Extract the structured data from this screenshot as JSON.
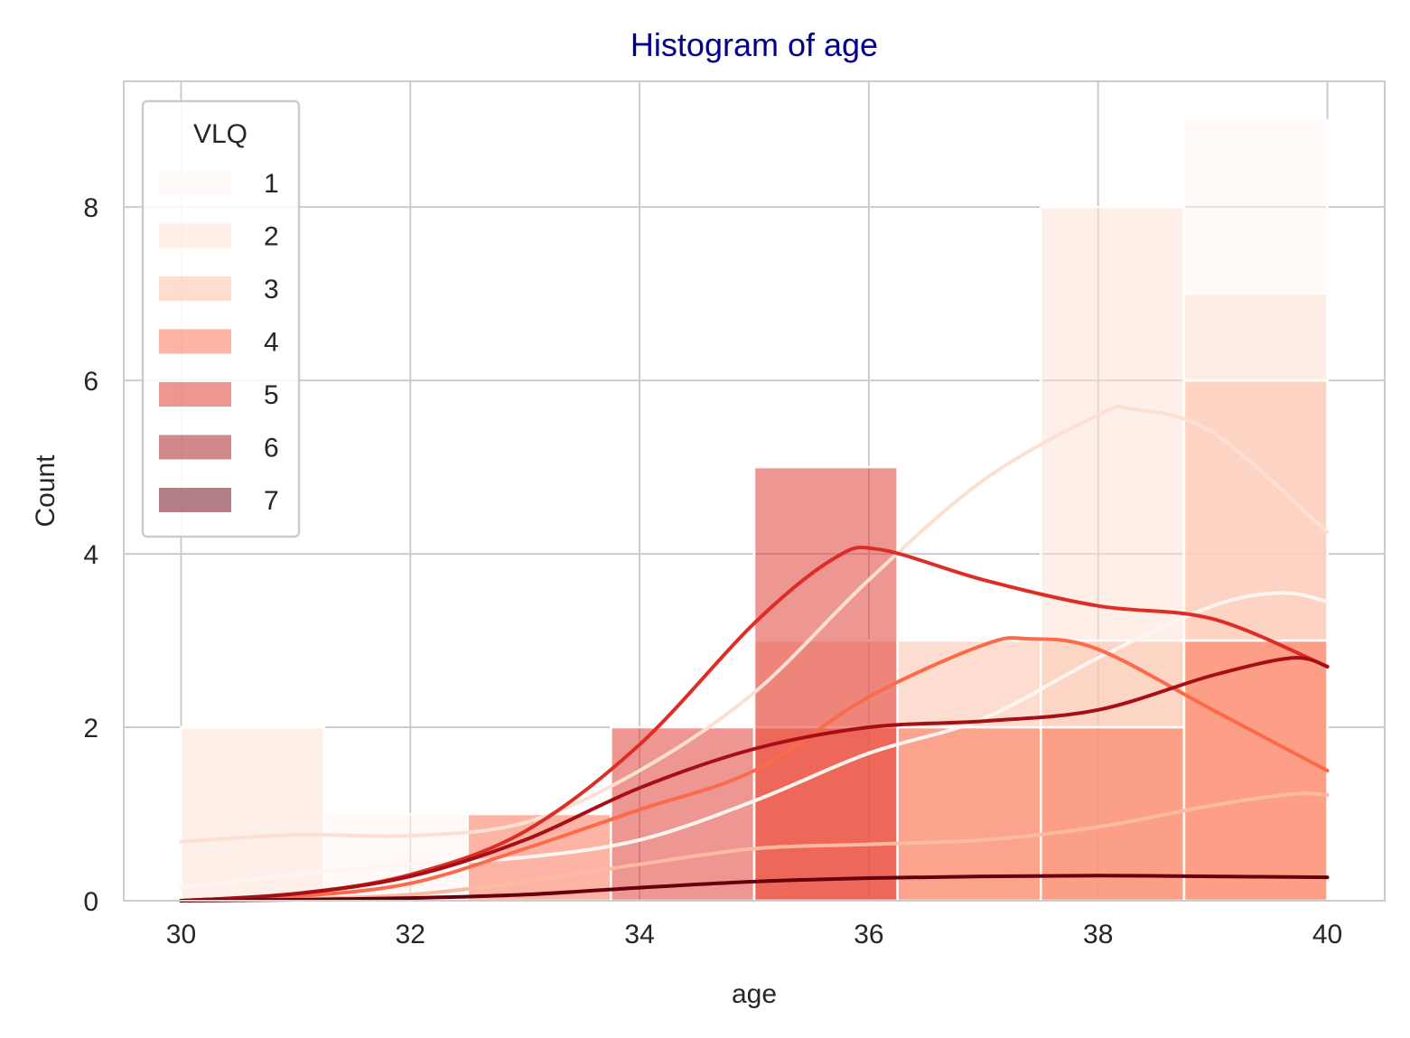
{
  "chart_data": {
    "type": "bar",
    "title": "Histogram of age",
    "title_color": "#00008b",
    "xlabel": "age",
    "ylabel": "Count",
    "xlim": [
      29.5,
      40.5
    ],
    "ylim": [
      0,
      9.45
    ],
    "xticks": [
      30,
      32,
      34,
      36,
      38,
      40
    ],
    "yticks": [
      0,
      2,
      4,
      6,
      8
    ],
    "grid": true,
    "legend": {
      "title": "VLQ",
      "position": "top-left"
    },
    "bin_edges": [
      30,
      31.25,
      32.5,
      33.75,
      35,
      36.25,
      37.5,
      38.75,
      40
    ],
    "series": [
      {
        "name": "1",
        "color": "#fff5f0",
        "counts": [
          0,
          1,
          0,
          0,
          0,
          0,
          0,
          9
        ],
        "kde": [
          [
            30,
            0.15
          ],
          [
            31,
            0.3
          ],
          [
            32,
            0.42
          ],
          [
            33,
            0.5
          ],
          [
            34,
            0.7
          ],
          [
            35,
            1.15
          ],
          [
            36,
            1.7
          ],
          [
            37,
            2.1
          ],
          [
            38,
            2.8
          ],
          [
            39,
            3.4
          ],
          [
            39.6,
            3.55
          ],
          [
            40,
            3.45
          ]
        ]
      },
      {
        "name": "2",
        "color": "#fde0d2",
        "counts": [
          2,
          0,
          0,
          0,
          0,
          0,
          8,
          7
        ],
        "kde": [
          [
            30,
            0.68
          ],
          [
            31,
            0.76
          ],
          [
            32,
            0.75
          ],
          [
            33,
            0.9
          ],
          [
            34,
            1.5
          ],
          [
            35,
            2.4
          ],
          [
            36,
            3.7
          ],
          [
            37,
            4.85
          ],
          [
            38,
            5.6
          ],
          [
            38.3,
            5.67
          ],
          [
            39,
            5.4
          ],
          [
            40,
            4.25
          ]
        ]
      },
      {
        "name": "3",
        "color": "#fcbba1",
        "counts": [
          0,
          0,
          0,
          0,
          3,
          3,
          3,
          6
        ],
        "kde": [
          [
            30,
            0
          ],
          [
            31,
            0.02
          ],
          [
            32,
            0.07
          ],
          [
            33,
            0.22
          ],
          [
            34,
            0.42
          ],
          [
            35,
            0.6
          ],
          [
            36,
            0.65
          ],
          [
            37,
            0.7
          ],
          [
            38,
            0.85
          ],
          [
            39,
            1.1
          ],
          [
            39.7,
            1.23
          ],
          [
            40,
            1.22
          ]
        ]
      },
      {
        "name": "4",
        "color": "#fb6a4a",
        "counts": [
          0,
          0,
          1,
          0,
          2,
          2,
          2,
          3
        ],
        "kde": [
          [
            30,
            0
          ],
          [
            31,
            0.05
          ],
          [
            32,
            0.2
          ],
          [
            33,
            0.6
          ],
          [
            34,
            1.05
          ],
          [
            35,
            1.5
          ],
          [
            36,
            2.35
          ],
          [
            37,
            2.95
          ],
          [
            37.4,
            3.02
          ],
          [
            38,
            2.9
          ],
          [
            39,
            2.2
          ],
          [
            40,
            1.5
          ]
        ]
      },
      {
        "name": "5",
        "color": "#de2d26",
        "counts": [
          0,
          0,
          0,
          2,
          5,
          0,
          0,
          0
        ],
        "kde": [
          [
            30,
            0
          ],
          [
            31,
            0.08
          ],
          [
            32,
            0.3
          ],
          [
            33,
            0.8
          ],
          [
            34,
            1.8
          ],
          [
            35,
            3.2
          ],
          [
            35.7,
            3.95
          ],
          [
            36.1,
            4.05
          ],
          [
            37,
            3.7
          ],
          [
            38,
            3.4
          ],
          [
            39,
            3.25
          ],
          [
            40,
            2.7
          ]
        ]
      },
      {
        "name": "6",
        "color": "#a50f15",
        "counts": [
          0,
          0,
          0,
          0,
          0,
          0,
          0,
          0
        ],
        "kde": [
          [
            30,
            0
          ],
          [
            31,
            0.08
          ],
          [
            32,
            0.28
          ],
          [
            33,
            0.7
          ],
          [
            34,
            1.3
          ],
          [
            35,
            1.75
          ],
          [
            36,
            2.0
          ],
          [
            37,
            2.07
          ],
          [
            38,
            2.2
          ],
          [
            39,
            2.6
          ],
          [
            39.7,
            2.8
          ],
          [
            40,
            2.7
          ]
        ]
      },
      {
        "name": "7",
        "color": "#67000d",
        "counts": [
          0,
          0,
          0,
          0,
          0,
          0,
          0,
          0
        ],
        "kde": [
          [
            30,
            0
          ],
          [
            31,
            0.01
          ],
          [
            32,
            0.03
          ],
          [
            33,
            0.07
          ],
          [
            34,
            0.15
          ],
          [
            35,
            0.22
          ],
          [
            36,
            0.26
          ],
          [
            37,
            0.28
          ],
          [
            38,
            0.29
          ],
          [
            39,
            0.28
          ],
          [
            40,
            0.27
          ]
        ]
      }
    ]
  }
}
